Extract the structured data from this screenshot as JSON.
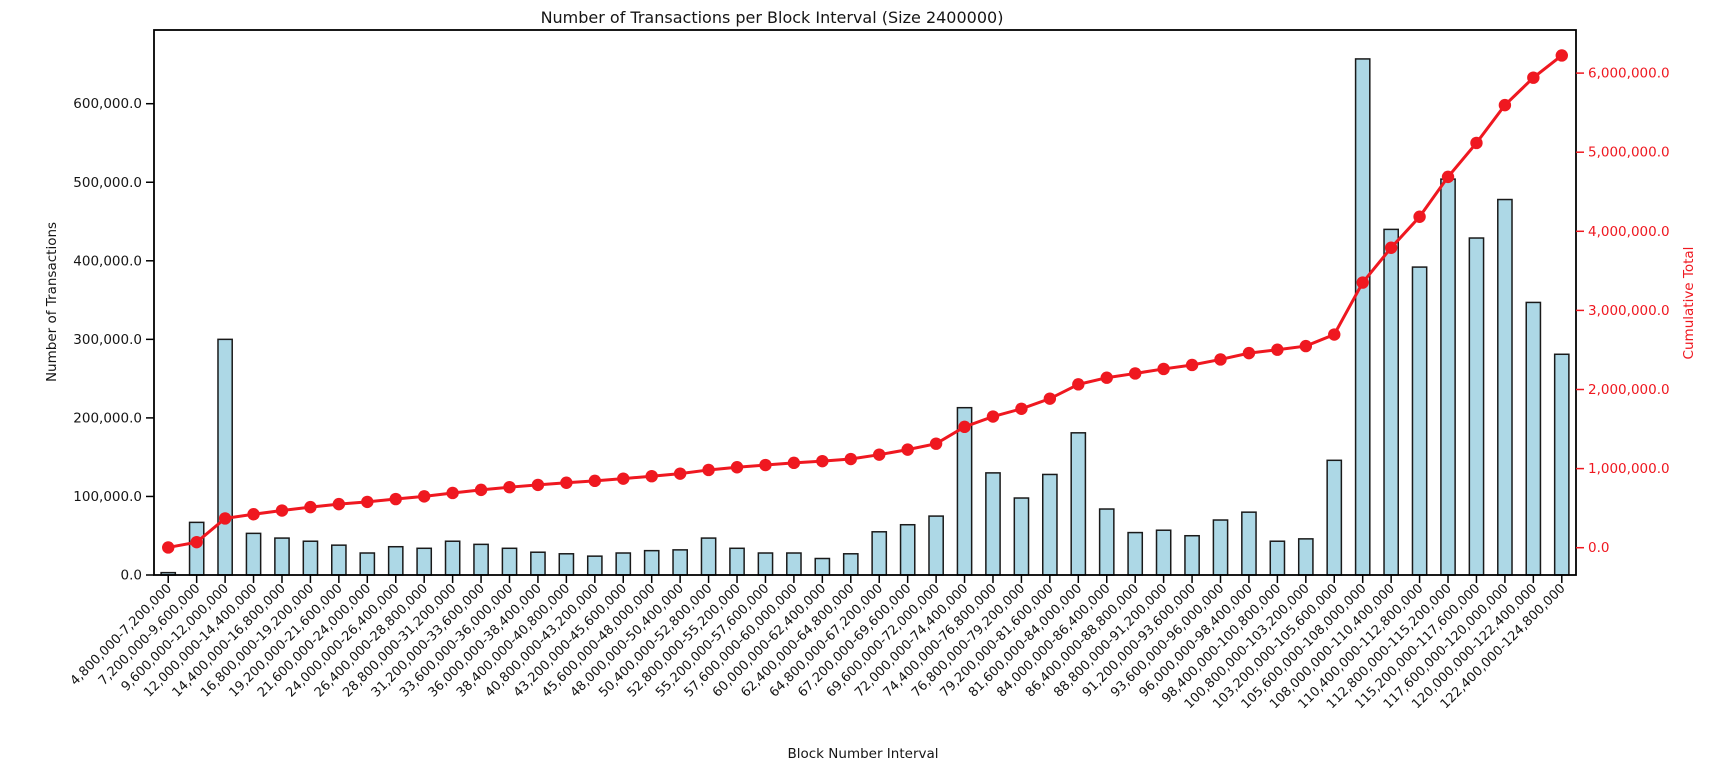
{
  "figure": {
    "title": "Number of Transactions per Block Interval (Size 2400000)",
    "xlabel": "Block Number Interval",
    "ylabel_left": "Number of Transactions",
    "ylabel_right": "Cumulative Total"
  },
  "colors": {
    "background": "#ffffff",
    "bar_fill": "#add8e6",
    "bar_edge": "#1a1a1a",
    "line": "#ef1820",
    "axis": "#000000",
    "text": "#151515"
  },
  "chart_data": {
    "type": "bar",
    "title": "Number of Transactions per Block Interval (Size 2400000)",
    "xlabel": "Block Number Interval",
    "ylabel": "Number of Transactions",
    "ylabel_right": "Cumulative Total",
    "grid": false,
    "legend": "none",
    "categories": [
      "4,800,000-7,200,000",
      "7,200,000-9,600,000",
      "9,600,000-12,000,000",
      "12,000,000-14,400,000",
      "14,400,000-16,800,000",
      "16,800,000-19,200,000",
      "19,200,000-21,600,000",
      "21,600,000-24,000,000",
      "24,000,000-26,400,000",
      "26,400,000-28,800,000",
      "28,800,000-31,200,000",
      "31,200,000-33,600,000",
      "33,600,000-36,000,000",
      "36,000,000-38,400,000",
      "38,400,000-40,800,000",
      "40,800,000-43,200,000",
      "43,200,000-45,600,000",
      "45,600,000-48,000,000",
      "48,000,000-50,400,000",
      "50,400,000-52,800,000",
      "52,800,000-55,200,000",
      "55,200,000-57,600,000",
      "57,600,000-60,000,000",
      "60,000,000-62,400,000",
      "62,400,000-64,800,000",
      "64,800,000-67,200,000",
      "67,200,000-69,600,000",
      "69,600,000-72,000,000",
      "72,000,000-74,400,000",
      "74,400,000-76,800,000",
      "76,800,000-79,200,000",
      "79,200,000-81,600,000",
      "81,600,000-84,000,000",
      "84,000,000-86,400,000",
      "86,400,000-88,800,000",
      "88,800,000-91,200,000",
      "91,200,000-93,600,000",
      "93,600,000-96,000,000",
      "96,000,000-98,400,000",
      "98,400,000-100,800,000",
      "100,800,000-103,200,000",
      "103,200,000-105,600,000",
      "105,600,000-108,000,000",
      "108,000,000-110,400,000",
      "110,400,000-112,800,000",
      "112,800,000-115,200,000",
      "115,200,000-117,600,000",
      "117,600,000-120,000,000",
      "120,000,000-122,400,000",
      "122,400,000-124,800,000"
    ],
    "series": [
      {
        "name": "Number of Transactions",
        "type": "bar",
        "axis": "left",
        "values": [
          3000,
          67000,
          300000,
          53000,
          47000,
          43000,
          38000,
          28000,
          36000,
          34000,
          43000,
          39000,
          34000,
          29000,
          27000,
          24000,
          28000,
          31000,
          32000,
          47000,
          34000,
          28000,
          28000,
          21000,
          27000,
          55000,
          64000,
          75000,
          213000,
          130000,
          98000,
          128000,
          181000,
          84000,
          54000,
          57000,
          50000,
          70000,
          80000,
          43000,
          46000,
          146000,
          657000,
          440000,
          392000,
          504000,
          429000,
          478000,
          347000,
          281000
        ]
      },
      {
        "name": "Cumulative Total",
        "type": "line",
        "axis": "right",
        "values": [
          3000,
          70000,
          370000,
          423000,
          470000,
          513000,
          551000,
          579000,
          615000,
          649000,
          692000,
          731000,
          765000,
          794000,
          821000,
          845000,
          873000,
          904000,
          936000,
          983000,
          1017000,
          1045000,
          1073000,
          1094000,
          1121000,
          1176000,
          1240000,
          1315000,
          1528000,
          1658000,
          1756000,
          1884000,
          2065000,
          2149000,
          2203000,
          2260000,
          2310000,
          2380000,
          2460000,
          2503000,
          2549000,
          2695000,
          3352000,
          3792000,
          4184000,
          4688000,
          5117000,
          5595000,
          5942000,
          6223000
        ]
      }
    ],
    "left_axis": {
      "tick_values": [
        0,
        100000,
        200000,
        300000,
        400000,
        500000,
        600000
      ],
      "tick_labels": [
        "0.0",
        "100,000.0",
        "200,000.0",
        "300,000.0",
        "400,000.0",
        "500,000.0",
        "600,000.0"
      ],
      "range": [
        0,
        694000
      ]
    },
    "right_axis": {
      "tick_values": [
        0,
        1000000,
        2000000,
        3000000,
        4000000,
        5000000,
        6000000
      ],
      "tick_labels": [
        "0.0",
        "1,000,000.0",
        "2,000,000.0",
        "3,000,000.0",
        "4,000,000.0",
        "5,000,000.0",
        "6,000,000.0"
      ],
      "range": [
        -345000,
        6546000
      ]
    }
  }
}
